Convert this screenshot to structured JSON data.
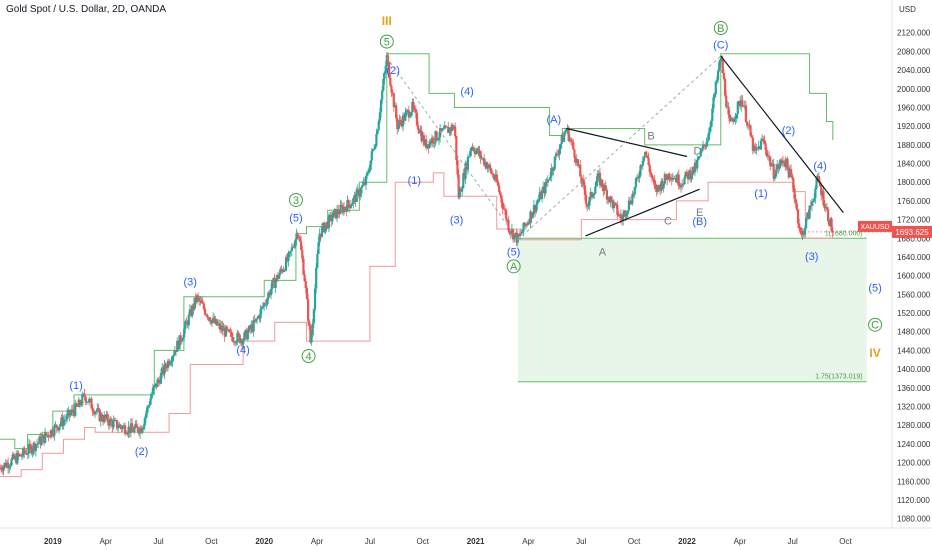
{
  "header": {
    "symbol_title": "Gold Spot / U.S. Dollar, 2D, OANDA",
    "currency": "USD"
  },
  "colors": {
    "bull": "#26a69a",
    "bear": "#ef5350",
    "upper_band": "#66bb6a",
    "lower_band": "#ef9a9a",
    "wave_blue": "#2962ff",
    "wave_green": "#43a047",
    "wave_orange": "#e8a317",
    "wave_gray": "#787b86",
    "target_zone": "#e8f5e9",
    "price_tag": "#ef5350"
  },
  "chart_data": {
    "type": "candlestick",
    "symbol": "XAUUSD",
    "timeframe": "2D",
    "source": "OANDA",
    "last_price": "1693.625",
    "last_price_value": 1693.625,
    "price_tag_label": "XAUUSD",
    "ylim": [
      1060,
      2160
    ],
    "y_ticks": [
      1080,
      1120,
      1160,
      1200,
      1240,
      1280,
      1320,
      1360,
      1400,
      1440,
      1480,
      1520,
      1560,
      1600,
      1640,
      1680,
      1720,
      1760,
      1800,
      1840,
      1880,
      1920,
      1960,
      2000,
      2040,
      2080,
      2120
    ],
    "y_tick_labels": [
      "1080.000",
      "1120.000",
      "1160.000",
      "1200.000",
      "1240.000",
      "1280.000",
      "1320.000",
      "1360.000",
      "1400.000",
      "1440.000",
      "1480.000",
      "1520.000",
      "1560.000",
      "1600.000",
      "1640.000",
      "1680.000",
      "1720.000",
      "1760.000",
      "1800.000",
      "1840.000",
      "1880.000",
      "1920.000",
      "1960.000",
      "2000.000",
      "2040.000",
      "2080.000",
      "2120.000"
    ],
    "x_ticks": [
      {
        "label": "2019",
        "t": 2019.0,
        "bold": true
      },
      {
        "label": "Apr",
        "t": 2019.25,
        "bold": false
      },
      {
        "label": "Jul",
        "t": 2019.5,
        "bold": false
      },
      {
        "label": "Oct",
        "t": 2019.75,
        "bold": false
      },
      {
        "label": "2020",
        "t": 2020.0,
        "bold": true
      },
      {
        "label": "Apr",
        "t": 2020.25,
        "bold": false
      },
      {
        "label": "Jul",
        "t": 2020.5,
        "bold": false
      },
      {
        "label": "Oct",
        "t": 2020.75,
        "bold": false
      },
      {
        "label": "2021",
        "t": 2021.0,
        "bold": true
      },
      {
        "label": "Apr",
        "t": 2021.25,
        "bold": false
      },
      {
        "label": "Jul",
        "t": 2021.5,
        "bold": false
      },
      {
        "label": "Oct",
        "t": 2021.75,
        "bold": false
      },
      {
        "label": "2022",
        "t": 2022.0,
        "bold": true
      },
      {
        "label": "Apr",
        "t": 2022.25,
        "bold": false
      },
      {
        "label": "Jul",
        "t": 2022.5,
        "bold": false
      },
      {
        "label": "Oct",
        "t": 2022.75,
        "bold": false
      }
    ],
    "price_path": [
      [
        2018.75,
        1190
      ],
      [
        2018.85,
        1215
      ],
      [
        2018.95,
        1250
      ],
      [
        2019.05,
        1290
      ],
      [
        2019.12,
        1320
      ],
      [
        2019.15,
        1343
      ],
      [
        2019.22,
        1300
      ],
      [
        2019.3,
        1280
      ],
      [
        2019.38,
        1270
      ],
      [
        2019.42,
        1275
      ],
      [
        2019.47,
        1350
      ],
      [
        2019.55,
        1420
      ],
      [
        2019.6,
        1460
      ],
      [
        2019.68,
        1552
      ],
      [
        2019.76,
        1500
      ],
      [
        2019.84,
        1470
      ],
      [
        2019.9,
        1465
      ],
      [
        2019.96,
        1500
      ],
      [
        2020.04,
        1580
      ],
      [
        2020.12,
        1640
      ],
      [
        2020.16,
        1700
      ],
      [
        2020.19,
        1600
      ],
      [
        2020.22,
        1451
      ],
      [
        2020.26,
        1690
      ],
      [
        2020.33,
        1730
      ],
      [
        2020.42,
        1760
      ],
      [
        2020.48,
        1800
      ],
      [
        2020.53,
        1900
      ],
      [
        2020.58,
        2067
      ],
      [
        2020.63,
        1920
      ],
      [
        2020.7,
        1960
      ],
      [
        2020.76,
        1880
      ],
      [
        2020.82,
        1900
      ],
      [
        2020.9,
        1920
      ],
      [
        2020.92,
        1770
      ],
      [
        2020.98,
        1880
      ],
      [
        2021.05,
        1840
      ],
      [
        2021.1,
        1800
      ],
      [
        2021.16,
        1700
      ],
      [
        2021.2,
        1677
      ],
      [
        2021.26,
        1730
      ],
      [
        2021.33,
        1790
      ],
      [
        2021.4,
        1880
      ],
      [
        2021.43,
        1915
      ],
      [
        2021.47,
        1860
      ],
      [
        2021.53,
        1750
      ],
      [
        2021.58,
        1810
      ],
      [
        2021.64,
        1760
      ],
      [
        2021.69,
        1720
      ],
      [
        2021.75,
        1780
      ],
      [
        2021.8,
        1870
      ],
      [
        2021.85,
        1780
      ],
      [
        2021.92,
        1820
      ],
      [
        2021.97,
        1800
      ],
      [
        2022.04,
        1830
      ],
      [
        2022.1,
        1900
      ],
      [
        2022.16,
        2070
      ],
      [
        2022.2,
        1920
      ],
      [
        2022.26,
        1980
      ],
      [
        2022.32,
        1860
      ],
      [
        2022.36,
        1890
      ],
      [
        2022.41,
        1820
      ],
      [
        2022.46,
        1850
      ],
      [
        2022.5,
        1800
      ],
      [
        2022.54,
        1680
      ],
      [
        2022.58,
        1740
      ],
      [
        2022.62,
        1807
      ],
      [
        2022.66,
        1740
      ],
      [
        2022.69,
        1693
      ]
    ],
    "upper_band": [
      [
        2018.75,
        1250
      ],
      [
        2018.8,
        1250
      ],
      [
        2018.82,
        1230
      ],
      [
        2018.88,
        1260
      ],
      [
        2018.95,
        1265
      ],
      [
        2019.0,
        1310
      ],
      [
        2019.1,
        1345
      ],
      [
        2019.33,
        1345
      ],
      [
        2019.48,
        1440
      ],
      [
        2019.62,
        1555
      ],
      [
        2019.92,
        1555
      ],
      [
        2020.0,
        1590
      ],
      [
        2020.15,
        1690
      ],
      [
        2020.2,
        1705
      ],
      [
        2020.3,
        1740
      ],
      [
        2020.45,
        1800
      ],
      [
        2020.58,
        2075
      ],
      [
        2020.75,
        2075
      ],
      [
        2020.78,
        1990
      ],
      [
        2020.9,
        1960
      ],
      [
        2021.2,
        1960
      ],
      [
        2021.35,
        1900
      ],
      [
        2021.41,
        1915
      ],
      [
        2021.62,
        1915
      ],
      [
        2021.8,
        1880
      ],
      [
        2022.06,
        1880
      ],
      [
        2022.16,
        2075
      ],
      [
        2022.55,
        2075
      ],
      [
        2022.58,
        1990
      ],
      [
        2022.66,
        1930
      ],
      [
        2022.69,
        1890
      ]
    ],
    "lower_band": [
      [
        2018.75,
        1170
      ],
      [
        2018.85,
        1185
      ],
      [
        2018.95,
        1220
      ],
      [
        2019.05,
        1250
      ],
      [
        2019.15,
        1275
      ],
      [
        2019.2,
        1265
      ],
      [
        2019.4,
        1265
      ],
      [
        2019.55,
        1305
      ],
      [
        2019.65,
        1410
      ],
      [
        2019.9,
        1460
      ],
      [
        2020.05,
        1500
      ],
      [
        2020.2,
        1460
      ],
      [
        2020.45,
        1460
      ],
      [
        2020.5,
        1620
      ],
      [
        2020.62,
        1800
      ],
      [
        2020.8,
        1820
      ],
      [
        2020.85,
        1770
      ],
      [
        2020.95,
        1770
      ],
      [
        2021.1,
        1700
      ],
      [
        2021.2,
        1677
      ],
      [
        2021.42,
        1677
      ],
      [
        2021.5,
        1720
      ],
      [
        2021.7,
        1720
      ],
      [
        2021.95,
        1760
      ],
      [
        2022.1,
        1800
      ],
      [
        2022.35,
        1800
      ],
      [
        2022.5,
        1780
      ],
      [
        2022.56,
        1680
      ],
      [
        2022.69,
        1680
      ]
    ],
    "levels": [
      {
        "price": 1680,
        "label": "1(1680.000)",
        "t_start": 2021.2,
        "t_end": 2022.85
      },
      {
        "price": 1373.019,
        "label": "1.75(1373.019)",
        "t_start": 2021.2,
        "t_end": 2022.85
      }
    ],
    "target_zone": {
      "t_start": 2021.2,
      "t_end": 2022.85,
      "price_top": 1680,
      "price_bottom": 1373
    },
    "trendlines": [
      {
        "t1": 2021.43,
        "p1": 1915,
        "t2": 2022.0,
        "p2": 1855,
        "style": "solid"
      },
      {
        "t1": 2021.52,
        "p1": 1685,
        "t2": 2022.06,
        "p2": 1785,
        "style": "solid"
      },
      {
        "t1": 2022.16,
        "p1": 2070,
        "t2": 2022.74,
        "p2": 1735,
        "style": "solid"
      },
      {
        "t1": 2020.58,
        "p1": 2067,
        "t2": 2021.2,
        "p2": 1677,
        "style": "dashed"
      },
      {
        "t1": 2021.2,
        "p1": 1677,
        "t2": 2022.16,
        "p2": 2070,
        "style": "dashed"
      }
    ],
    "wave_labels": [
      {
        "text": "III",
        "t": 2020.58,
        "p": 2145,
        "style": "orange"
      },
      {
        "text": "5",
        "t": 2020.58,
        "p": 2101,
        "style": "circle-green"
      },
      {
        "text": "(2)",
        "t": 2020.61,
        "p": 2040,
        "style": "blue"
      },
      {
        "text": "(4)",
        "t": 2020.96,
        "p": 1995,
        "style": "blue"
      },
      {
        "text": "(1)",
        "t": 2020.71,
        "p": 1805,
        "style": "blue"
      },
      {
        "text": "(3)",
        "t": 2020.91,
        "p": 1720,
        "style": "blue"
      },
      {
        "text": "(5)",
        "t": 2021.18,
        "p": 1652,
        "style": "blue"
      },
      {
        "text": "A",
        "t": 2021.18,
        "p": 1620,
        "style": "circle-green"
      },
      {
        "text": "(A)",
        "t": 2021.37,
        "p": 1935,
        "style": "blue"
      },
      {
        "text": "A",
        "t": 2021.6,
        "p": 1652,
        "style": "gray"
      },
      {
        "text": "B",
        "t": 2021.83,
        "p": 1900,
        "style": "gray"
      },
      {
        "text": "C",
        "t": 2021.91,
        "p": 1718,
        "style": "gray"
      },
      {
        "text": "D",
        "t": 2022.05,
        "p": 1868,
        "style": "gray"
      },
      {
        "text": "E",
        "t": 2022.06,
        "p": 1736,
        "style": "gray"
      },
      {
        "text": "(B)",
        "t": 2022.06,
        "p": 1717,
        "style": "blue"
      },
      {
        "text": "B",
        "t": 2022.16,
        "p": 2130,
        "style": "circle-green"
      },
      {
        "text": "(C)",
        "t": 2022.16,
        "p": 2095,
        "style": "blue"
      },
      {
        "text": "(2)",
        "t": 2022.48,
        "p": 1912,
        "style": "blue"
      },
      {
        "text": "(1)",
        "t": 2022.35,
        "p": 1777,
        "style": "blue"
      },
      {
        "text": "(4)",
        "t": 2022.63,
        "p": 1836,
        "style": "blue"
      },
      {
        "text": "(3)",
        "t": 2022.59,
        "p": 1642,
        "style": "blue"
      },
      {
        "text": "(5)",
        "t": 2022.89,
        "p": 1575,
        "style": "blue"
      },
      {
        "text": "C",
        "t": 2022.89,
        "p": 1495,
        "style": "circle-green"
      },
      {
        "text": "IV",
        "t": 2022.89,
        "p": 1435,
        "style": "orange"
      },
      {
        "text": "(1)",
        "t": 2019.11,
        "p": 1366,
        "style": "blue"
      },
      {
        "text": "(2)",
        "t": 2019.42,
        "p": 1225,
        "style": "blue"
      },
      {
        "text": "(3)",
        "t": 2019.65,
        "p": 1587,
        "style": "blue"
      },
      {
        "text": "(4)",
        "t": 2019.9,
        "p": 1442,
        "style": "blue"
      },
      {
        "text": "(5)",
        "t": 2020.15,
        "p": 1724,
        "style": "blue"
      },
      {
        "text": "3",
        "t": 2020.15,
        "p": 1762,
        "style": "circle-green"
      },
      {
        "text": "4",
        "t": 2020.21,
        "p": 1428,
        "style": "circle-green"
      }
    ]
  }
}
